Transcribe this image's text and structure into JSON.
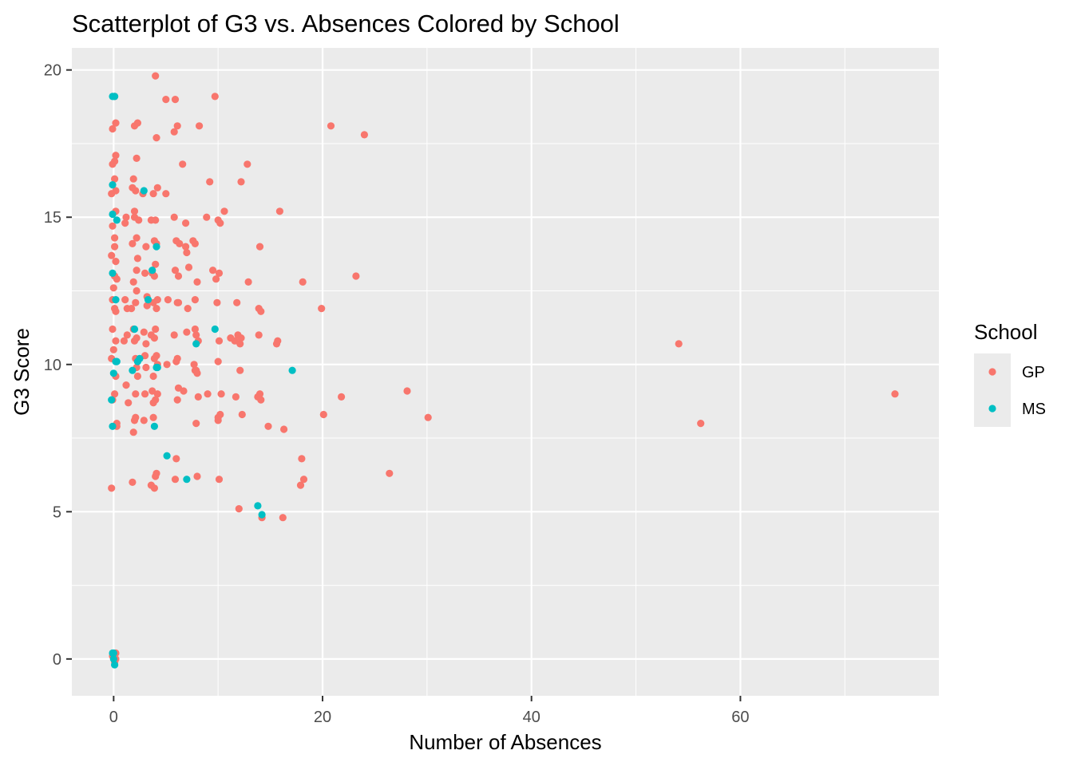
{
  "chart_data": {
    "type": "scatter",
    "title": "Scatterplot of G3 vs. Absences Colored by School",
    "xlabel": "Number of Absences",
    "ylabel": "G3 Score",
    "xlim": [
      -4,
      79
    ],
    "ylim": [
      -1.25,
      20.75
    ],
    "x_ticks": [
      0,
      20,
      40,
      60
    ],
    "y_ticks": [
      0,
      5,
      10,
      15,
      20
    ],
    "grid": true,
    "legend": {
      "title": "School",
      "position": "right"
    },
    "series": [
      {
        "name": "GP",
        "color": "#F8766D",
        "points": [
          [
            -0.2,
            5.8
          ],
          [
            -0.1,
            8.8
          ],
          [
            0.1,
            9.0
          ],
          [
            -0.2,
            10.2
          ],
          [
            0.2,
            10.8
          ],
          [
            -0.1,
            11.2
          ],
          [
            0.2,
            11.8
          ],
          [
            -0.1,
            12.2
          ],
          [
            0.1,
            13.0
          ],
          [
            0.2,
            13.5
          ],
          [
            -0.2,
            13.7
          ],
          [
            0.1,
            14.0
          ],
          [
            -0.1,
            14.7
          ],
          [
            0.2,
            15.2
          ],
          [
            -0.2,
            15.8
          ],
          [
            0.1,
            16.3
          ],
          [
            -0.1,
            16.8
          ],
          [
            0.2,
            17.1
          ],
          [
            -0.1,
            18.0
          ],
          [
            0.2,
            18.2
          ],
          [
            0.1,
            19.1
          ],
          [
            0.3,
            8.0
          ],
          [
            0.3,
            12.9
          ],
          [
            0.1,
            14.3
          ],
          [
            0.2,
            0.0
          ],
          [
            0.2,
            0.2
          ],
          [
            0.1,
            -0.1
          ],
          [
            -0.1,
            0.1
          ],
          [
            0.3,
            7.9
          ],
          [
            0.0,
            10.5
          ],
          [
            0.1,
            11.9
          ],
          [
            0.2,
            15.9
          ],
          [
            0.1,
            16.9
          ],
          [
            0.2,
            9.6
          ],
          [
            0.0,
            12.6
          ],
          [
            1.2,
            15.0
          ],
          [
            1.1,
            12.2
          ],
          [
            1.3,
            11.9
          ],
          [
            1.0,
            10.8
          ],
          [
            1.2,
            9.3
          ],
          [
            1.4,
            8.7
          ],
          [
            1.1,
            14.8
          ],
          [
            1.3,
            11.0
          ],
          [
            1.8,
            6.0
          ],
          [
            1.9,
            7.7
          ],
          [
            2.0,
            8.1
          ],
          [
            2.1,
            9.0
          ],
          [
            2.2,
            9.9
          ],
          [
            2.0,
            10.8
          ],
          [
            1.9,
            11.2
          ],
          [
            2.1,
            12.1
          ],
          [
            2.2,
            13.2
          ],
          [
            1.8,
            14.1
          ],
          [
            2.0,
            15.0
          ],
          [
            2.1,
            15.9
          ],
          [
            1.9,
            16.3
          ],
          [
            2.2,
            17.0
          ],
          [
            2.0,
            18.1
          ],
          [
            2.3,
            18.2
          ],
          [
            2.1,
            8.2
          ],
          [
            2.3,
            9.6
          ],
          [
            2.2,
            10.9
          ],
          [
            1.7,
            11.9
          ],
          [
            1.9,
            12.8
          ],
          [
            2.3,
            13.6
          ],
          [
            2.2,
            14.3
          ],
          [
            2.0,
            15.2
          ],
          [
            1.8,
            16.0
          ],
          [
            2.4,
            14.9
          ],
          [
            2.2,
            12.5
          ],
          [
            2.1,
            10.2
          ],
          [
            2.9,
            8.1
          ],
          [
            3.0,
            9.0
          ],
          [
            3.1,
            10.7
          ],
          [
            2.9,
            11.1
          ],
          [
            3.2,
            12.0
          ],
          [
            3.0,
            13.1
          ],
          [
            3.1,
            14.0
          ],
          [
            2.8,
            15.8
          ],
          [
            3.2,
            12.3
          ],
          [
            3.0,
            10.3
          ],
          [
            3.1,
            9.9
          ],
          [
            3.6,
            5.9
          ],
          [
            3.8,
            8.7
          ],
          [
            3.7,
            9.1
          ],
          [
            3.9,
            10.2
          ],
          [
            3.6,
            11.0
          ],
          [
            3.8,
            12.1
          ],
          [
            3.7,
            13.1
          ],
          [
            3.9,
            14.2
          ],
          [
            3.6,
            14.9
          ],
          [
            3.8,
            15.8
          ],
          [
            4.0,
            19.8
          ],
          [
            4.1,
            17.7
          ],
          [
            4.2,
            16.0
          ],
          [
            4.0,
            14.9
          ],
          [
            4.1,
            14.1
          ],
          [
            3.9,
            13.0
          ],
          [
            4.2,
            12.2
          ],
          [
            4.0,
            11.2
          ],
          [
            4.1,
            10.3
          ],
          [
            4.2,
            9.0
          ],
          [
            4.0,
            8.8
          ],
          [
            4.1,
            6.3
          ],
          [
            3.9,
            5.8
          ],
          [
            4.0,
            6.2
          ],
          [
            4.2,
            10.0
          ],
          [
            3.8,
            9.6
          ],
          [
            4.1,
            11.9
          ],
          [
            3.9,
            10.9
          ],
          [
            3.8,
            8.2
          ],
          [
            4.0,
            13.4
          ],
          [
            5.0,
            15.8
          ],
          [
            5.1,
            10.0
          ],
          [
            5.2,
            12.2
          ],
          [
            5.0,
            19.0
          ],
          [
            5.8,
            17.9
          ],
          [
            5.9,
            19.0
          ],
          [
            6.1,
            18.1
          ],
          [
            5.8,
            15.0
          ],
          [
            6.0,
            14.2
          ],
          [
            5.9,
            13.2
          ],
          [
            6.1,
            12.1
          ],
          [
            5.8,
            11.0
          ],
          [
            6.0,
            10.1
          ],
          [
            6.1,
            8.8
          ],
          [
            6.0,
            6.8
          ],
          [
            5.9,
            6.1
          ],
          [
            6.2,
            9.2
          ],
          [
            6.3,
            14.1
          ],
          [
            6.2,
            13.0
          ],
          [
            6.1,
            10.2
          ],
          [
            6.2,
            12.1
          ],
          [
            6.6,
            16.8
          ],
          [
            6.7,
            9.1
          ],
          [
            6.9,
            14.8
          ],
          [
            7.0,
            13.8
          ],
          [
            6.9,
            14.0
          ],
          [
            7.1,
            11.9
          ],
          [
            7.0,
            11.1
          ],
          [
            7.2,
            13.3
          ],
          [
            7.6,
            14.2
          ],
          [
            7.8,
            14.1
          ],
          [
            7.7,
            10.0
          ],
          [
            7.9,
            9.8
          ],
          [
            7.8,
            9.8
          ],
          [
            8.0,
            9.7
          ],
          [
            8.1,
            10.8
          ],
          [
            7.9,
            11.0
          ],
          [
            7.8,
            12.2
          ],
          [
            8.0,
            12.8
          ],
          [
            8.2,
            18.1
          ],
          [
            7.9,
            8.0
          ],
          [
            8.1,
            8.9
          ],
          [
            8.0,
            6.2
          ],
          [
            7.8,
            11.2
          ],
          [
            8.9,
            15.0
          ],
          [
            9.0,
            9.0
          ],
          [
            9.2,
            16.2
          ],
          [
            9.5,
            13.2
          ],
          [
            9.7,
            19.1
          ],
          [
            9.8,
            12.9
          ],
          [
            9.9,
            12.1
          ],
          [
            10.0,
            10.1
          ],
          [
            10.1,
            10.8
          ],
          [
            10.0,
            8.2
          ],
          [
            10.2,
            8.3
          ],
          [
            10.3,
            9.0
          ],
          [
            10.1,
            6.1
          ],
          [
            10.0,
            14.9
          ],
          [
            10.2,
            14.8
          ],
          [
            10.1,
            13.1
          ],
          [
            10.0,
            8.1
          ],
          [
            10.6,
            15.2
          ],
          [
            11.2,
            10.9
          ],
          [
            11.6,
            10.8
          ],
          [
            11.7,
            8.9
          ],
          [
            11.8,
            12.1
          ],
          [
            11.9,
            11.0
          ],
          [
            12.0,
            5.1
          ],
          [
            12.2,
            16.2
          ],
          [
            12.1,
            9.8
          ],
          [
            12.3,
            8.3
          ],
          [
            12.1,
            10.7
          ],
          [
            12.2,
            10.9
          ],
          [
            12.9,
            12.8
          ],
          [
            12.8,
            16.8
          ],
          [
            13.8,
            8.9
          ],
          [
            14.0,
            9.0
          ],
          [
            13.9,
            11.9
          ],
          [
            14.1,
            8.8
          ],
          [
            14.0,
            14.0
          ],
          [
            13.9,
            11.0
          ],
          [
            14.1,
            11.8
          ],
          [
            14.2,
            4.8
          ],
          [
            14.8,
            7.9
          ],
          [
            15.7,
            10.8
          ],
          [
            15.6,
            10.7
          ],
          [
            15.9,
            15.2
          ],
          [
            16.2,
            4.8
          ],
          [
            16.3,
            7.8
          ],
          [
            18.1,
            12.8
          ],
          [
            18.0,
            6.8
          ],
          [
            18.2,
            6.1
          ],
          [
            17.9,
            5.9
          ],
          [
            19.9,
            11.9
          ],
          [
            20.1,
            8.3
          ],
          [
            20.8,
            18.1
          ],
          [
            21.8,
            8.9
          ],
          [
            23.2,
            13.0
          ],
          [
            24.0,
            17.8
          ],
          [
            26.4,
            6.3
          ],
          [
            28.1,
            9.1
          ],
          [
            30.1,
            8.2
          ],
          [
            54.1,
            10.7
          ],
          [
            56.2,
            8.0
          ],
          [
            74.8,
            9.0
          ]
        ]
      },
      {
        "name": "MS",
        "color": "#00BFC4",
        "points": [
          [
            -0.1,
            19.1
          ],
          [
            0.1,
            19.1
          ],
          [
            -0.1,
            16.1
          ],
          [
            -0.1,
            15.1
          ],
          [
            0.3,
            14.9
          ],
          [
            -0.1,
            13.1
          ],
          [
            0.2,
            12.2
          ],
          [
            0.3,
            10.1
          ],
          [
            0.0,
            9.7
          ],
          [
            -0.2,
            8.8
          ],
          [
            -0.1,
            7.9
          ],
          [
            0.0,
            0.2
          ],
          [
            0.0,
            0.0
          ],
          [
            0.1,
            -0.2
          ],
          [
            -0.1,
            0.2
          ],
          [
            0.2,
            10.1
          ],
          [
            1.8,
            9.8
          ],
          [
            2.0,
            11.2
          ],
          [
            2.3,
            10.1
          ],
          [
            2.5,
            10.2
          ],
          [
            2.9,
            15.9
          ],
          [
            3.3,
            12.2
          ],
          [
            3.7,
            13.2
          ],
          [
            3.9,
            7.9
          ],
          [
            4.1,
            14.0
          ],
          [
            4.1,
            9.9
          ],
          [
            4.2,
            9.9
          ],
          [
            5.1,
            6.9
          ],
          [
            7.0,
            6.1
          ],
          [
            7.9,
            10.7
          ],
          [
            9.7,
            11.2
          ],
          [
            13.8,
            5.2
          ],
          [
            14.2,
            4.9
          ],
          [
            17.1,
            9.8
          ]
        ]
      }
    ]
  }
}
